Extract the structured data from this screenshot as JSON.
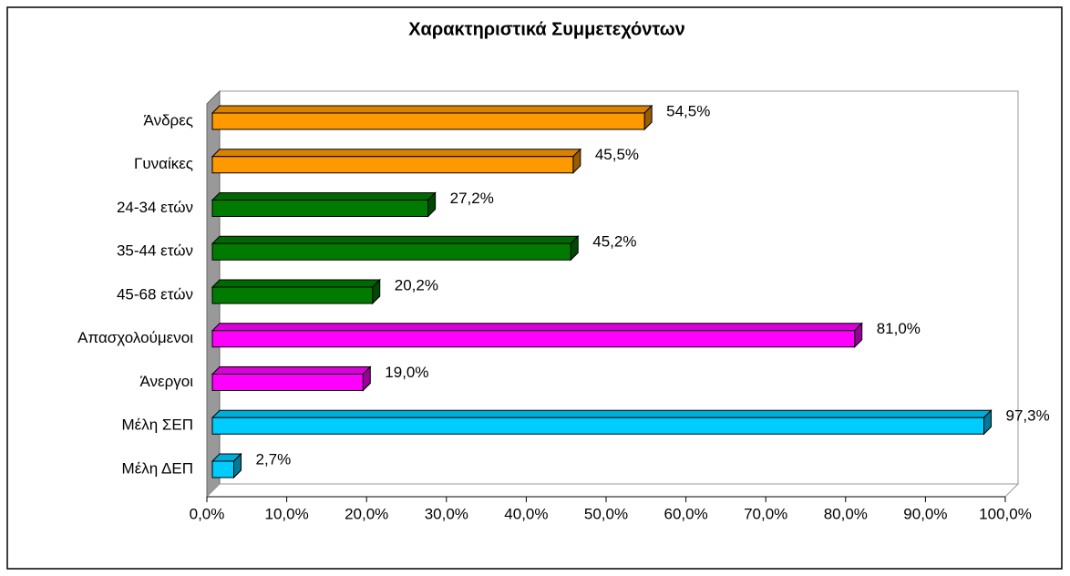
{
  "chart_data": {
    "type": "bar",
    "orientation": "horizontal",
    "title": "Χαρακτηριστικά Συμμετεχόντων",
    "categories": [
      "Άνδρες",
      "Γυναίκες",
      "24-34 ετών",
      "35-44 ετών",
      "45-68 ετών",
      "Απασχολούμενοι",
      "Άνεργοι",
      "Μέλη ΣΕΠ",
      "Μέλη ΔΕΠ"
    ],
    "values": [
      54.5,
      45.5,
      27.2,
      45.2,
      20.2,
      81.0,
      19.0,
      97.3,
      2.7
    ],
    "value_labels": [
      "54,5%",
      "45,5%",
      "27,2%",
      "45,2%",
      "20,2%",
      "81,0%",
      "19,0%",
      "97,3%",
      "2,7%"
    ],
    "colors": [
      "#FF9900",
      "#FF9900",
      "#007A00",
      "#007A00",
      "#007A00",
      "#FF00FF",
      "#FF00FF",
      "#00CCFF",
      "#00CCFF"
    ],
    "xlim": [
      0,
      100
    ],
    "xticks": [
      {
        "value": 0,
        "label": "0,0%"
      },
      {
        "value": 10,
        "label": "10,0%"
      },
      {
        "value": 20,
        "label": "20,0%"
      },
      {
        "value": 30,
        "label": "30,0%"
      },
      {
        "value": 40,
        "label": "40,0%"
      },
      {
        "value": 50,
        "label": "50,0%"
      },
      {
        "value": 60,
        "label": "60,0%"
      },
      {
        "value": 70,
        "label": "70,0%"
      },
      {
        "value": 80,
        "label": "80,0%"
      },
      {
        "value": 90,
        "label": "90,0%"
      },
      {
        "value": 100,
        "label": "100,0%"
      }
    ],
    "grid": false
  }
}
